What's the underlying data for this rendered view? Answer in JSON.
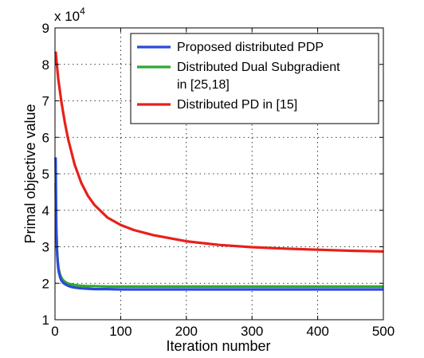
{
  "chart_data": {
    "type": "line",
    "title": "",
    "xlabel": "Iteration number",
    "ylabel": "Primal objective value",
    "y_multiplier_label": "x 10",
    "y_multiplier_exponent": "4",
    "xlim": [
      0,
      500
    ],
    "ylim": [
      1,
      9
    ],
    "xticks": [
      0,
      100,
      200,
      300,
      400,
      500
    ],
    "yticks": [
      1,
      2,
      3,
      4,
      5,
      6,
      7,
      8,
      9
    ],
    "grid": true,
    "legend_position": "top-right",
    "series": [
      {
        "name": "Proposed distributed PDP",
        "color": "#2b4bd8",
        "x": [
          1,
          2,
          3,
          4,
          5,
          6,
          8,
          10,
          12,
          15,
          20,
          25,
          30,
          40,
          50,
          60,
          80,
          100,
          150,
          200,
          300,
          400,
          500
        ],
        "y": [
          5.45,
          3.6,
          2.9,
          2.6,
          2.4,
          2.3,
          2.15,
          2.07,
          2.02,
          1.98,
          1.93,
          1.9,
          1.88,
          1.86,
          1.85,
          1.84,
          1.84,
          1.83,
          1.83,
          1.83,
          1.83,
          1.83,
          1.83
        ]
      },
      {
        "name": "Distributed Dual Subgradient in [25,18]",
        "color": "#2fa82f",
        "x": [
          1,
          2,
          3,
          4,
          5,
          6,
          8,
          10,
          12,
          15,
          20,
          25,
          30,
          40,
          50,
          60,
          80,
          100,
          150,
          200,
          300,
          400,
          500
        ],
        "y": [
          4.75,
          3.5,
          2.95,
          2.65,
          2.48,
          2.36,
          2.22,
          2.14,
          2.09,
          2.04,
          1.99,
          1.97,
          1.95,
          1.93,
          1.92,
          1.92,
          1.91,
          1.91,
          1.91,
          1.91,
          1.91,
          1.91,
          1.91
        ]
      },
      {
        "name": "Distributed PD in [15]",
        "color": "#e8201a",
        "x": [
          1,
          5,
          10,
          15,
          20,
          30,
          40,
          50,
          60,
          80,
          100,
          120,
          150,
          200,
          250,
          300,
          350,
          400,
          450,
          500
        ],
        "y": [
          8.35,
          7.6,
          6.95,
          6.4,
          5.95,
          5.25,
          4.75,
          4.4,
          4.15,
          3.8,
          3.6,
          3.46,
          3.32,
          3.15,
          3.05,
          2.99,
          2.95,
          2.92,
          2.89,
          2.87
        ]
      }
    ],
    "legend_items": [
      {
        "lines": [
          "Proposed distributed PDP"
        ]
      },
      {
        "lines": [
          "Distributed Dual Subgradient",
          "in [25,18]"
        ]
      },
      {
        "lines": [
          "Distributed PD in [15]"
        ]
      }
    ]
  }
}
